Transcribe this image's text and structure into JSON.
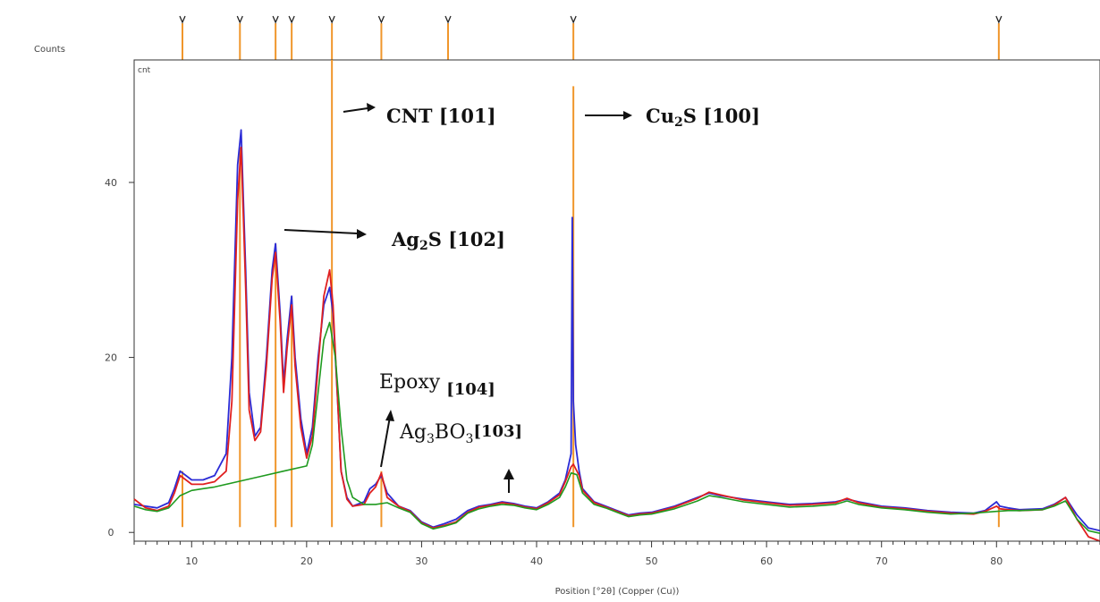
{
  "chart_data": {
    "type": "line",
    "ylabel": "Counts",
    "xlabel": "Position [°2θ] (Copper (Cu))",
    "plot_label": "cnt",
    "xlim": [
      5,
      89
    ],
    "ylim": [
      -1,
      54
    ],
    "x_ticks": [
      10,
      20,
      30,
      40,
      50,
      60,
      70,
      80
    ],
    "y_ticks": [
      0,
      20,
      40
    ],
    "colors": {
      "observed": "#2b2bd6",
      "calculated": "#e02020",
      "background": "#1f9a1f",
      "reflections": "#f0962b",
      "axis": "#333333"
    },
    "series": [
      {
        "key": "observed",
        "x": [
          5,
          6,
          7,
          8,
          8.5,
          9,
          9.5,
          10,
          11,
          12,
          13,
          13.5,
          14,
          14.3,
          14.7,
          15,
          15.5,
          16,
          16.5,
          17,
          17.3,
          17.7,
          18,
          18.3,
          18.7,
          19,
          19.5,
          20,
          20.5,
          21,
          21.5,
          22,
          22.3,
          22.7,
          23,
          23.5,
          24,
          25,
          25.5,
          26,
          26.5,
          27,
          28,
          29,
          30,
          31,
          32,
          33,
          34,
          35,
          36,
          37,
          38,
          39,
          40,
          41,
          42,
          42.5,
          43,
          43.1,
          43.2,
          43.4,
          43.7,
          44,
          45,
          46,
          47,
          48,
          49,
          50,
          52,
          54,
          55,
          56,
          58,
          60,
          62,
          64,
          66,
          67,
          68,
          70,
          72,
          74,
          76,
          78,
          79,
          80,
          80.3,
          81,
          82,
          84,
          85,
          86,
          87,
          88,
          89
        ],
        "y": [
          3.2,
          3,
          2.8,
          3.4,
          5,
          7,
          6.5,
          6,
          6,
          6.5,
          9,
          20,
          42,
          46,
          30,
          16,
          11,
          12,
          20,
          30,
          33,
          25,
          17,
          22,
          27,
          20,
          13,
          9,
          12,
          20,
          26,
          28,
          25,
          15,
          7,
          4,
          3,
          3.5,
          5,
          5.5,
          6.5,
          4.5,
          3,
          2.5,
          1.2,
          0.6,
          1,
          1.5,
          2.5,
          3,
          3.2,
          3.5,
          3.3,
          3,
          2.8,
          3.5,
          4.5,
          6,
          9,
          36,
          15,
          10,
          7,
          5,
          3.5,
          3,
          2.5,
          2,
          2.2,
          2.3,
          3,
          4,
          4.5,
          4.2,
          3.8,
          3.5,
          3.2,
          3.3,
          3.5,
          3.8,
          3.5,
          3,
          2.8,
          2.5,
          2.3,
          2.2,
          2.5,
          3.5,
          3,
          2.8,
          2.6,
          2.7,
          3.2,
          4,
          2,
          0.5,
          0.2
        ]
      },
      {
        "key": "calculated",
        "x": [
          5,
          6,
          7,
          8,
          8.5,
          9,
          9.5,
          10,
          11,
          12,
          13,
          13.5,
          14,
          14.3,
          14.7,
          15,
          15.5,
          16,
          16.5,
          17,
          17.3,
          17.7,
          18,
          18.3,
          18.7,
          19,
          19.5,
          20,
          20.5,
          21,
          21.5,
          22,
          22.3,
          22.7,
          23,
          23.5,
          24,
          25,
          25.5,
          26,
          26.5,
          27,
          28,
          29,
          30,
          31,
          32,
          33,
          34,
          35,
          36,
          37,
          38,
          39,
          40,
          41,
          42,
          42.5,
          43,
          43.2,
          43.7,
          44,
          45,
          46,
          47,
          48,
          49,
          50,
          52,
          54,
          55,
          56,
          58,
          60,
          62,
          64,
          66,
          67,
          68,
          70,
          72,
          74,
          76,
          78,
          79,
          80,
          80.3,
          81,
          82,
          84,
          85,
          86,
          87,
          88,
          89
        ],
        "y": [
          3.8,
          2.8,
          2.5,
          3,
          4.5,
          6.5,
          6,
          5.5,
          5.5,
          5.8,
          7,
          15,
          38,
          44,
          28,
          14,
          10.5,
          11.5,
          19,
          29,
          32,
          24,
          16,
          21,
          26,
          19,
          12,
          8.5,
          11,
          19,
          27,
          30,
          26,
          15,
          7,
          3.8,
          3,
          3.2,
          4.5,
          5.2,
          6.8,
          4,
          3,
          2.4,
          1.1,
          0.5,
          0.8,
          1.2,
          2.3,
          2.9,
          3.1,
          3.4,
          3.2,
          2.9,
          2.7,
          3.4,
          4.3,
          5.8,
          7.5,
          7.8,
          6.5,
          4.8,
          3.4,
          2.9,
          2.4,
          1.9,
          2.1,
          2.2,
          2.9,
          3.9,
          4.6,
          4.3,
          3.7,
          3.4,
          3.1,
          3.2,
          3.4,
          3.9,
          3.4,
          2.9,
          2.7,
          2.4,
          2.2,
          2.1,
          2.4,
          3,
          2.7,
          2.6,
          2.5,
          2.6,
          3.1,
          4,
          1.5,
          -0.5,
          -1
        ]
      },
      {
        "key": "background",
        "x": [
          5,
          6,
          7,
          8,
          8.5,
          9,
          10,
          11,
          12,
          14,
          16,
          18,
          20,
          20.5,
          21,
          21.5,
          22,
          22.5,
          23,
          23.5,
          24,
          25,
          26,
          27,
          28,
          29,
          30,
          31,
          32,
          33,
          34,
          35,
          36,
          37,
          38,
          39,
          40,
          41,
          42,
          42.5,
          43,
          43.5,
          44,
          45,
          46,
          47,
          48,
          49,
          50,
          52,
          54,
          55,
          56,
          58,
          60,
          62,
          64,
          66,
          67,
          68,
          70,
          72,
          74,
          76,
          78,
          80,
          81,
          82,
          84,
          85,
          86,
          87,
          88,
          89
        ],
        "y": [
          3,
          2.6,
          2.4,
          2.8,
          3.5,
          4.2,
          4.8,
          5,
          5.2,
          5.8,
          6.4,
          7,
          7.6,
          10,
          16,
          22,
          24,
          20,
          12,
          6,
          4,
          3.2,
          3.2,
          3.4,
          2.8,
          2.3,
          1,
          0.4,
          0.7,
          1.1,
          2.2,
          2.7,
          3,
          3.2,
          3.1,
          2.8,
          2.6,
          3.2,
          4,
          5.2,
          6.8,
          6.6,
          4.5,
          3.2,
          2.8,
          2.3,
          1.8,
          2,
          2.1,
          2.7,
          3.6,
          4.2,
          4,
          3.5,
          3.2,
          2.9,
          3,
          3.2,
          3.6,
          3.2,
          2.8,
          2.6,
          2.3,
          2.1,
          2.2,
          2.4,
          2.5,
          2.5,
          2.6,
          3,
          3.6,
          1.5,
          0.2,
          -0.1
        ]
      }
    ],
    "reflection_markers": [
      9.2,
      14.2,
      17.3,
      18.7,
      22.2,
      26.5,
      32.3,
      43.2,
      80.2
    ],
    "reflection_sticks": [
      {
        "x": 9.2,
        "y": 7
      },
      {
        "x": 14.2,
        "y": 44
      },
      {
        "x": 17.3,
        "y": 33
      },
      {
        "x": 18.7,
        "y": 27
      },
      {
        "x": 22.2,
        "y": 54
      },
      {
        "x": 26.5,
        "y": 7
      },
      {
        "x": 43.2,
        "y": 51
      },
      {
        "x": 80.2,
        "y": 3
      }
    ],
    "annotations": [
      {
        "key": "cnt101",
        "label": "CNT ",
        "index": "[101]"
      },
      {
        "key": "cu2s",
        "label": "Cu",
        "sub": "2",
        "rest": "S ",
        "index": "[100]"
      },
      {
        "key": "ag2s",
        "label": "Ag",
        "sub": "2",
        "rest": "S ",
        "index": "[102]"
      },
      {
        "key": "epoxy",
        "label": "Epoxy ",
        "index": "[104]"
      },
      {
        "key": "ag3bo3",
        "label": "Ag",
        "sub": "3",
        "rest": "BO",
        "sub2": "3",
        "index": "[103]"
      }
    ]
  }
}
